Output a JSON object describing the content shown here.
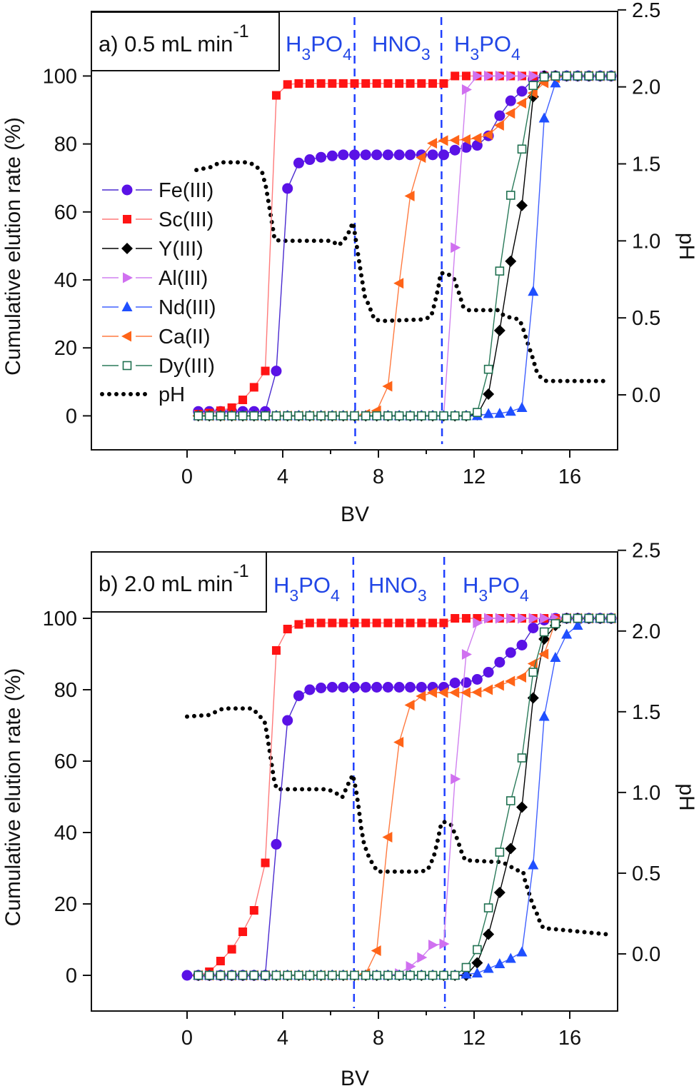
{
  "chart_data": [
    {
      "type": "line",
      "title": "a) 0.5 mL min",
      "title_sup": "-1",
      "xlabel": "BV",
      "ylabel": "Cumulative elution rate (%)",
      "ylabel_right": "pH",
      "xlim": [
        -4,
        18
      ],
      "ylim": [
        -10,
        119
      ],
      "ylim_right": [
        -0.357,
        2.49
      ],
      "xticks": [
        "0",
        "4",
        "8",
        "12",
        "16"
      ],
      "yticks": [
        "0",
        "20",
        "40",
        "60",
        "80",
        "100"
      ],
      "yticks_right": [
        "0.0",
        "0.5",
        "1.0",
        "1.5",
        "2.0",
        "2.5"
      ],
      "dividers": [
        7.0,
        10.63
      ],
      "acid_labels": [
        {
          "a": "H",
          "a_sub": "3",
          "b": "PO",
          "b_sub": "4"
        },
        {
          "a": "HNO",
          "a_sub": "3",
          "b": "",
          "b_sub": ""
        },
        {
          "a": "H",
          "a_sub": "3",
          "b": "PO",
          "b_sub": "4"
        }
      ],
      "legend": {
        "show": true,
        "position": "left"
      },
      "x": [
        0,
        0.47,
        0.93,
        1.4,
        1.87,
        2.33,
        2.8,
        3.27,
        3.73,
        4.2,
        4.67,
        5.13,
        5.6,
        6.07,
        6.53,
        7.0,
        7.47,
        7.93,
        8.4,
        8.87,
        9.33,
        9.8,
        10.27,
        10.73,
        11.2,
        11.67,
        12.13,
        12.6,
        13.07,
        13.53,
        14.0,
        14.47,
        14.93,
        15.4,
        15.87,
        16.33,
        16.8,
        17.27,
        17.73
      ],
      "series": [
        {
          "name": "Fe(III)",
          "marker": "circle",
          "color": "#5a12e6",
          "line_color": "#4a2ad0",
          "values": [
            null,
            1.3,
            1.3,
            1.3,
            1.3,
            1.3,
            1.3,
            1.3,
            13.2,
            66.9,
            74.4,
            75.4,
            76.1,
            76.5,
            76.8,
            76.8,
            76.8,
            76.8,
            76.8,
            76.8,
            76.8,
            76.8,
            76.8,
            76.8,
            78.2,
            79,
            79.6,
            82.4,
            88.3,
            92.7,
            95.5,
            99,
            100,
            100,
            100,
            100,
            100,
            100,
            100
          ]
        },
        {
          "name": "Sc(III)",
          "marker": "square",
          "color": "#ff1414",
          "line_color": "#ff7a7a",
          "values": [
            null,
            0.5,
            0.8,
            1.5,
            2.4,
            4.7,
            8.4,
            13.2,
            94.3,
            97.5,
            97.8,
            97.8,
            97.8,
            97.8,
            97.8,
            97.8,
            97.8,
            97.8,
            97.8,
            97.8,
            97.8,
            97.8,
            97.8,
            97.8,
            100,
            100,
            100,
            100,
            100,
            100,
            100,
            100,
            100,
            100,
            100,
            100,
            100,
            100,
            100
          ]
        },
        {
          "name": "Y(III)",
          "marker": "diamond",
          "color": "#000000",
          "line_color": "#000000",
          "values": [
            null,
            0,
            0,
            0,
            0,
            0,
            0,
            0,
            0,
            0,
            0,
            0,
            0,
            0,
            0,
            0,
            0,
            0,
            0,
            0,
            0,
            0,
            0,
            0,
            0,
            0,
            0.3,
            6.4,
            25.1,
            45.5,
            61.9,
            93.9,
            100,
            100,
            100,
            100,
            100,
            100,
            100
          ]
        },
        {
          "name": "Al(III)",
          "marker": "triangle-right",
          "color": "#d070f0",
          "line_color": "#d080f0",
          "values": [
            null,
            0,
            0,
            0,
            0,
            0,
            0,
            0,
            0,
            0,
            0,
            0,
            0,
            0,
            0,
            0,
            0,
            0,
            0,
            0,
            0,
            0,
            0,
            0,
            49.5,
            96,
            100,
            100,
            100,
            100,
            100,
            100,
            100,
            100,
            100,
            100,
            100,
            100,
            100
          ]
        },
        {
          "name": "Nd(III)",
          "marker": "triangle-up",
          "color": "#1f4fff",
          "line_color": "#4060ff",
          "values": [
            null,
            0,
            0,
            0,
            0,
            0,
            0,
            0,
            0,
            0,
            0,
            0,
            0,
            0,
            0,
            0,
            0,
            0,
            0,
            0,
            0,
            0,
            0,
            0,
            0,
            0,
            0,
            0.6,
            0.7,
            1.3,
            2.4,
            36.6,
            87.6,
            97.9,
            100,
            100,
            100,
            100,
            100
          ]
        },
        {
          "name": "Ca(II)",
          "marker": "triangle-left",
          "color": "#ff6418",
          "line_color": "#ff7a40",
          "values": [
            null,
            0,
            0,
            0,
            0,
            0,
            0,
            0,
            0,
            0,
            0,
            0,
            0,
            0,
            0,
            0,
            0.5,
            1.5,
            8.7,
            39,
            64.7,
            76,
            80.2,
            81,
            81.1,
            81.3,
            81.7,
            82.7,
            85.5,
            89,
            92,
            95,
            98,
            99.5,
            100,
            100,
            100,
            100,
            100
          ]
        },
        {
          "name": "Dy(III)",
          "marker": "square-open",
          "color": "#1f7050",
          "line_color": "#2a7a5a",
          "values": [
            null,
            0,
            0,
            0,
            0,
            0,
            0,
            0,
            0,
            0,
            0,
            0,
            0,
            0,
            0,
            0,
            0,
            0,
            0,
            0,
            0,
            0,
            0,
            0,
            0,
            0,
            1,
            13.7,
            42.6,
            64.9,
            78.5,
            97.2,
            99.7,
            100,
            100,
            100,
            100,
            100,
            100
          ]
        }
      ],
      "ph": {
        "name": "pH",
        "x": [
          0.39,
          1.03,
          1.37,
          2.56,
          2.86,
          3.15,
          3.3,
          3.45,
          3.6,
          3.66,
          3.9,
          6.04,
          6.34,
          6.69,
          6.93,
          6.99,
          7.13,
          7.28,
          7.43,
          7.58,
          7.83,
          8.13,
          9.91,
          10.21,
          10.36,
          10.51,
          10.6,
          10.85,
          11.15,
          11.35,
          11.55,
          11.79,
          12.99,
          13.28,
          13.88,
          14.01,
          14.21,
          14.43,
          14.62,
          14.8,
          15.02,
          17.45
        ],
        "y": [
          1.46,
          1.48,
          1.51,
          1.51,
          1.49,
          1.44,
          1.35,
          1.21,
          1.07,
          1.01,
          1.0,
          1.0,
          0.97,
          1.03,
          1.12,
          1.07,
          0.93,
          0.78,
          0.64,
          0.59,
          0.49,
          0.48,
          0.49,
          0.51,
          0.6,
          0.7,
          0.79,
          0.79,
          0.76,
          0.67,
          0.57,
          0.55,
          0.55,
          0.51,
          0.49,
          0.45,
          0.35,
          0.25,
          0.15,
          0.11,
          0.09,
          0.09
        ]
      }
    },
    {
      "type": "line",
      "title": "b) 2.0 mL min",
      "title_sup": "-1",
      "xlabel": "BV",
      "ylabel": "Cumulative elution rate (%)",
      "ylabel_right": "pH",
      "xlim": [
        -4,
        18
      ],
      "ylim": [
        -10,
        118.6
      ],
      "ylim_right": [
        -0.354,
        2.49
      ],
      "xticks": [
        "0",
        "4",
        "8",
        "12",
        "16"
      ],
      "yticks": [
        "0",
        "20",
        "40",
        "60",
        "80",
        "100"
      ],
      "yticks_right": [
        "0.0",
        "0.5",
        "1.0",
        "1.5",
        "2.0",
        "2.5"
      ],
      "dividers": [
        6.95,
        10.75
      ],
      "acid_labels": [
        {
          "a": "H",
          "a_sub": "3",
          "b": "PO",
          "b_sub": "4"
        },
        {
          "a": "HNO",
          "a_sub": "3",
          "b": "",
          "b_sub": ""
        },
        {
          "a": "H",
          "a_sub": "3",
          "b": "PO",
          "b_sub": "4"
        }
      ],
      "legend": {
        "show": false
      },
      "x": [
        0,
        0.47,
        0.93,
        1.4,
        1.87,
        2.33,
        2.8,
        3.27,
        3.73,
        4.2,
        4.67,
        5.13,
        5.6,
        6.07,
        6.53,
        7.0,
        7.47,
        7.93,
        8.4,
        8.87,
        9.33,
        9.8,
        10.27,
        10.73,
        11.2,
        11.67,
        12.13,
        12.6,
        13.07,
        13.53,
        14.0,
        14.47,
        14.93,
        15.4,
        15.87,
        16.33,
        16.8,
        17.27,
        17.73
      ],
      "series": [
        {
          "name": "Fe(III)",
          "marker": "circle",
          "color": "#5a12e6",
          "line_color": "#4a2ad0",
          "values": [
            0,
            0,
            0,
            0,
            0,
            0,
            0,
            0,
            36.7,
            71.4,
            78.3,
            80,
            80.5,
            80.7,
            80.7,
            80.7,
            80.7,
            80.7,
            80.7,
            80.7,
            80.7,
            80.7,
            80.7,
            80.7,
            81.9,
            82,
            82.9,
            84.9,
            87.7,
            90.4,
            92.5,
            97.3,
            99.5,
            100,
            100,
            100,
            100,
            100,
            100
          ]
        },
        {
          "name": "Sc(III)",
          "marker": "square",
          "color": "#ff1414",
          "line_color": "#ff7a7a",
          "values": [
            null,
            0,
            1,
            4,
            7.3,
            12.2,
            18.2,
            31.5,
            91,
            97,
            98.3,
            98.7,
            98.7,
            98.7,
            98.7,
            98.7,
            98.7,
            98.7,
            98.7,
            98.7,
            98.7,
            98.7,
            98.7,
            98.7,
            100,
            100,
            100,
            100,
            100,
            100,
            100,
            100,
            100,
            100,
            100,
            100,
            100,
            100,
            100
          ]
        },
        {
          "name": "Y(III)",
          "marker": "diamond",
          "color": "#000000",
          "line_color": "#000000",
          "values": [
            null,
            0,
            0,
            0,
            0,
            0,
            0,
            0,
            0,
            0,
            0,
            0,
            0,
            0,
            0,
            0,
            0,
            0,
            0,
            0,
            0,
            0,
            0,
            0,
            0,
            0,
            3.5,
            11.5,
            23.2,
            35.5,
            47.1,
            77.7,
            94.2,
            98,
            100,
            100,
            100,
            100,
            100
          ]
        },
        {
          "name": "Al(III)",
          "marker": "triangle-right",
          "color": "#d070f0",
          "line_color": "#d080f0",
          "values": [
            null,
            0,
            0,
            0,
            0,
            0,
            0,
            0,
            0,
            0,
            0,
            0,
            0,
            0,
            0,
            0,
            0,
            0,
            0,
            0.5,
            2.5,
            5,
            8.5,
            8.8,
            55,
            89.9,
            98.7,
            100,
            100,
            100,
            100,
            100,
            100,
            100,
            100,
            100,
            100,
            100,
            100
          ]
        },
        {
          "name": "Nd(III)",
          "marker": "triangle-up",
          "color": "#1f4fff",
          "line_color": "#4060ff",
          "values": [
            null,
            0,
            0,
            0,
            0,
            0,
            0,
            0,
            0,
            0,
            0,
            0,
            0,
            0,
            0,
            0,
            0,
            0,
            0,
            0,
            0,
            0,
            0,
            0,
            0,
            0.3,
            0.6,
            1.9,
            3.2,
            4.7,
            6.5,
            30.9,
            72.5,
            89,
            95.5,
            98,
            100,
            100,
            100
          ]
        },
        {
          "name": "Ca(II)",
          "marker": "triangle-left",
          "color": "#ff6418",
          "line_color": "#ff7a40",
          "values": [
            null,
            0,
            0,
            0,
            0,
            0,
            0,
            0,
            0,
            0,
            0,
            0,
            0,
            0,
            0,
            0,
            0.5,
            6.9,
            38.7,
            65.3,
            75.7,
            78.2,
            79.2,
            79.2,
            79.2,
            79.2,
            79.3,
            80,
            81.2,
            82.4,
            83.5,
            87.3,
            90,
            99,
            100,
            100,
            100,
            100,
            100
          ]
        },
        {
          "name": "Dy(III)",
          "marker": "square-open",
          "color": "#1f7050",
          "line_color": "#2a7a5a",
          "values": [
            null,
            0,
            0,
            0,
            0,
            0,
            0,
            0,
            0,
            0,
            0,
            0,
            0,
            0,
            0,
            0,
            0,
            0,
            0,
            0,
            0,
            0,
            0,
            0,
            0,
            2.2,
            7.2,
            18.9,
            34.5,
            48.9,
            60.9,
            84.9,
            96.2,
            98.5,
            100,
            100,
            100,
            100,
            100
          ]
        }
      ],
      "ph": {
        "name": "pH",
        "x": [
          0,
          0.91,
          1.21,
          1.51,
          2.72,
          3.01,
          3.26,
          3.36,
          3.46,
          3.56,
          3.66,
          3.76,
          5.87,
          6.19,
          6.49,
          6.76,
          6.93,
          7.06,
          7.16,
          7.28,
          7.4,
          7.63,
          7.96,
          9.76,
          10.06,
          10.31,
          10.46,
          10.6,
          10.71,
          11.03,
          11.3,
          11.5,
          11.63,
          12.84,
          13.13,
          13.43,
          13.75,
          14.05,
          14.15,
          14.25,
          14.35,
          14.47,
          14.6,
          14.72,
          14.89,
          17.62
        ],
        "y": [
          1.47,
          1.48,
          1.5,
          1.52,
          1.52,
          1.48,
          1.43,
          1.34,
          1.25,
          1.15,
          1.06,
          1.02,
          1.02,
          1.0,
          0.97,
          1.06,
          1.11,
          1.02,
          0.92,
          0.78,
          0.68,
          0.59,
          0.51,
          0.51,
          0.52,
          0.6,
          0.69,
          0.79,
          0.82,
          0.8,
          0.71,
          0.62,
          0.58,
          0.57,
          0.57,
          0.55,
          0.52,
          0.51,
          0.44,
          0.4,
          0.35,
          0.3,
          0.26,
          0.21,
          0.16,
          0.12
        ]
      }
    }
  ]
}
